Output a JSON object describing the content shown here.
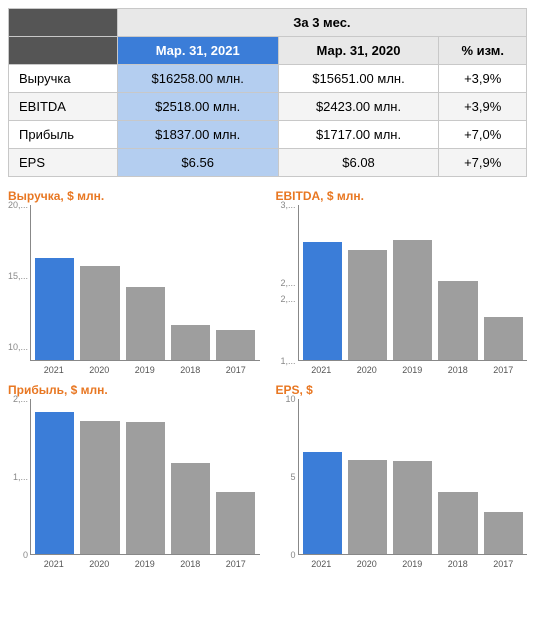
{
  "table": {
    "top_header": "За 3 мес.",
    "cols": [
      "Мар. 31, 2021",
      "Мар. 31, 2020",
      "% изм."
    ],
    "rows": [
      {
        "label": "Выручка",
        "v1": "$16258.00 млн.",
        "v2": "$15651.00 млн.",
        "pct": "+3,9%"
      },
      {
        "label": "EBITDA",
        "v1": "$2518.00 млн.",
        "v2": "$2423.00 млн.",
        "pct": "+3,9%"
      },
      {
        "label": "Прибыль",
        "v1": "$1837.00 млн.",
        "v2": "$1717.00 млн.",
        "pct": "+7,0%"
      },
      {
        "label": "EPS",
        "v1": "$6.56",
        "v2": "$6.08",
        "pct": "+7,9%"
      }
    ],
    "colors": {
      "hdr_blue_bg": "#3b7dd8",
      "hdr_blue_fg": "#ffffff",
      "hdr_grey_bg": "#e8e8e8",
      "hdr_blank_bg": "#555555",
      "cell_blue_bg": "#b4cef0",
      "cell_stripe_bg": "#f4f4f4",
      "border": "#c8c8c8"
    }
  },
  "charts": {
    "title_color": "#e87722",
    "bar_highlight_color": "#3b7dd8",
    "bar_default_color": "#9e9e9e",
    "axis_color": "#888888",
    "label_color": "#555555",
    "title_fontsize": 12,
    "axis_fontsize": 9,
    "items": [
      {
        "title": "Выручка, $ млн.",
        "categories": [
          "2021",
          "2020",
          "2019",
          "2018",
          "2017"
        ],
        "values": [
          16258,
          15651,
          14200,
          11500,
          11100
        ],
        "highlight_index": 0,
        "ymin": 9000,
        "ymax": 20000,
        "yticks": [
          {
            "val": 20000,
            "label": "20,..."
          },
          {
            "val": 15000,
            "label": "15,..."
          },
          {
            "val": 10000,
            "label": "10,..."
          }
        ]
      },
      {
        "title": "EBITDA, $ млн.",
        "categories": [
          "2021",
          "2020",
          "2019",
          "2018",
          "2017"
        ],
        "values": [
          2518,
          2423,
          2550,
          2020,
          1550
        ],
        "highlight_index": 0,
        "ymin": 1000,
        "ymax": 3000,
        "yticks": [
          {
            "val": 3000,
            "label": "3,..."
          },
          {
            "val": 2000,
            "label": "2,..."
          },
          {
            "val": 1800,
            "label": "2,..."
          },
          {
            "val": 1000,
            "label": "1,..."
          }
        ]
      },
      {
        "title": "Прибыль, $ млн.",
        "categories": [
          "2021",
          "2020",
          "2019",
          "2018",
          "2017"
        ],
        "values": [
          1837,
          1717,
          1700,
          1180,
          800
        ],
        "highlight_index": 0,
        "ymin": 0,
        "ymax": 2000,
        "yticks": [
          {
            "val": 2000,
            "label": "2,..."
          },
          {
            "val": 1000,
            "label": "1,..."
          },
          {
            "val": 0,
            "label": "0"
          }
        ]
      },
      {
        "title": "EPS, $",
        "categories": [
          "2021",
          "2020",
          "2019",
          "2018",
          "2017"
        ],
        "values": [
          6.56,
          6.08,
          6.0,
          4.0,
          2.7
        ],
        "highlight_index": 0,
        "ymin": 0,
        "ymax": 10,
        "yticks": [
          {
            "val": 10,
            "label": "10"
          },
          {
            "val": 5,
            "label": "5"
          },
          {
            "val": 0,
            "label": "0"
          }
        ]
      }
    ]
  }
}
